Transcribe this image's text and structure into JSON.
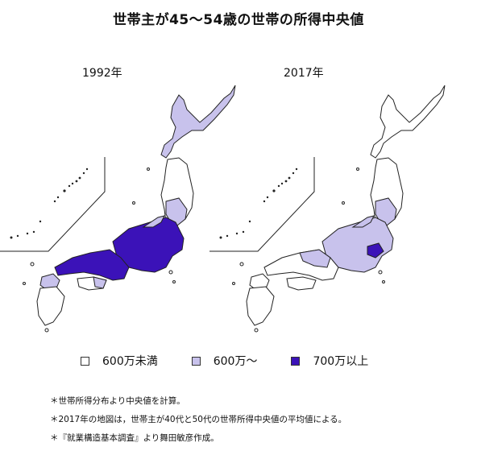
{
  "title": "世帯主が45〜54歳の世帯の所得中央値",
  "maps": [
    {
      "label": "1992年"
    },
    {
      "label": "2017年"
    }
  ],
  "legend": [
    {
      "label": "600万未満",
      "color": "#ffffff"
    },
    {
      "label": "600万〜",
      "color": "#c8c2ec"
    },
    {
      "label": "700万以上",
      "color": "#3b12b8"
    }
  ],
  "notes": [
    "＊世帯所得分布より中央値を計算。",
    "＊2017年の地図は，世帯主が40代と50代の世帯所得中央値の平均値による。",
    "＊『就業構造基本調査』より舞田敏彦作成。"
  ],
  "colors": {
    "low": "#ffffff",
    "mid": "#c8c2ec",
    "high": "#3b12b8",
    "outline": "#222222"
  }
}
